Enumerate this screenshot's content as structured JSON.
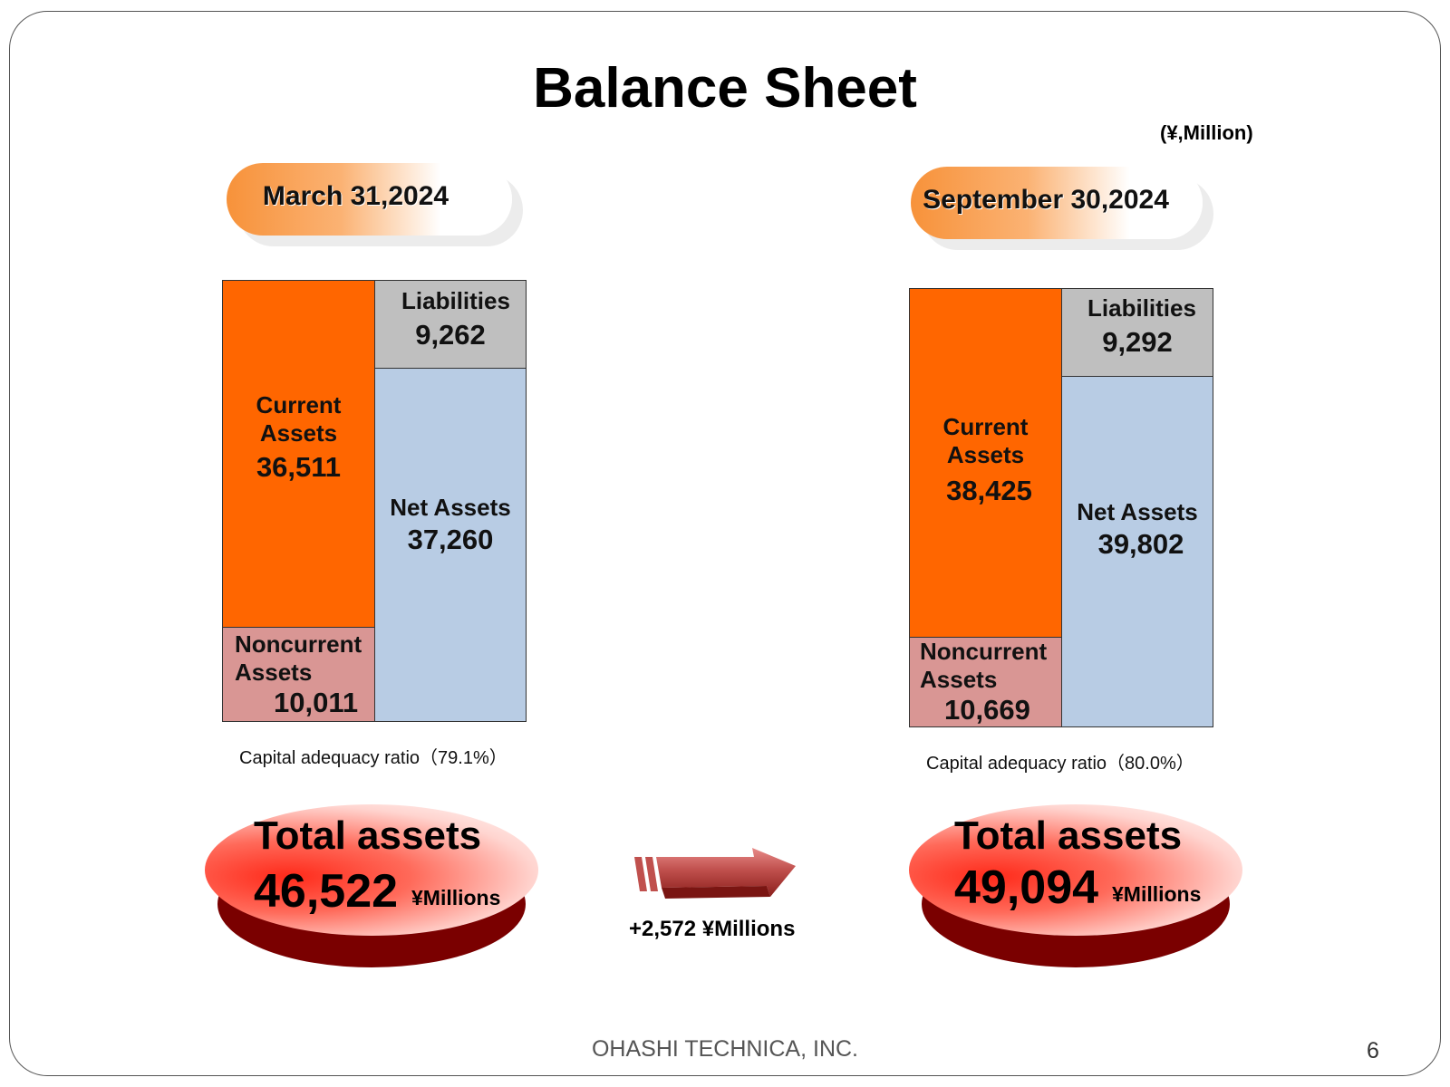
{
  "title": "Balance Sheet",
  "unit": "(¥,Million)",
  "periods": [
    {
      "date": "March 31,2024",
      "current_assets": {
        "label1": "Current",
        "label2": "Assets",
        "value": "36,511"
      },
      "noncurrent_assets": {
        "label1": "Noncurrent",
        "label2": "Assets",
        "value": "10,011"
      },
      "liabilities": {
        "label": "Liabilities",
        "value": "9,262"
      },
      "net_assets": {
        "label": "Net Assets",
        "value": "37,260"
      },
      "capital_ratio": "Capital adequacy ratio（79.1%）",
      "total_label": "Total assets",
      "total_value": "46,522",
      "total_unit": "¥Millions"
    },
    {
      "date": "September 30,2024",
      "current_assets": {
        "label1": "Current",
        "label2": "Assets",
        "value": "38,425"
      },
      "noncurrent_assets": {
        "label1": "Noncurrent",
        "label2": "Assets",
        "value": "10,669"
      },
      "liabilities": {
        "label": "Liabilities",
        "value": "9,292"
      },
      "net_assets": {
        "label": "Net Assets",
        "value": "39,802"
      },
      "capital_ratio": "Capital adequacy ratio（80.0%）",
      "total_label": "Total assets",
      "total_value": "49,094",
      "total_unit": "¥Millions"
    }
  ],
  "change": "+2,572 ¥Millions",
  "footer": "OHASHI TECHNICA, INC.",
  "page_number": "6",
  "colors": {
    "current_assets": "#ff6600",
    "noncurrent_assets": "#d99694",
    "liabilities": "#bfbfbf",
    "net_assets": "#b8cce4",
    "arrow": "#c0504d"
  },
  "chart_data": [
    {
      "type": "table",
      "title": "March 31,2024",
      "assets": [
        {
          "name": "Current Assets",
          "value": 36511
        },
        {
          "name": "Noncurrent Assets",
          "value": 10011
        }
      ],
      "liabilities_and_net_assets": [
        {
          "name": "Liabilities",
          "value": 9262
        },
        {
          "name": "Net Assets",
          "value": 37260
        }
      ],
      "total_assets": 46522,
      "capital_adequacy_ratio": 79.1
    },
    {
      "type": "table",
      "title": "September 30,2024",
      "assets": [
        {
          "name": "Current Assets",
          "value": 38425
        },
        {
          "name": "Noncurrent Assets",
          "value": 10669
        }
      ],
      "liabilities_and_net_assets": [
        {
          "name": "Liabilities",
          "value": 9292
        },
        {
          "name": "Net Assets",
          "value": 39802
        }
      ],
      "total_assets": 49094,
      "capital_adequacy_ratio": 80.0
    }
  ]
}
